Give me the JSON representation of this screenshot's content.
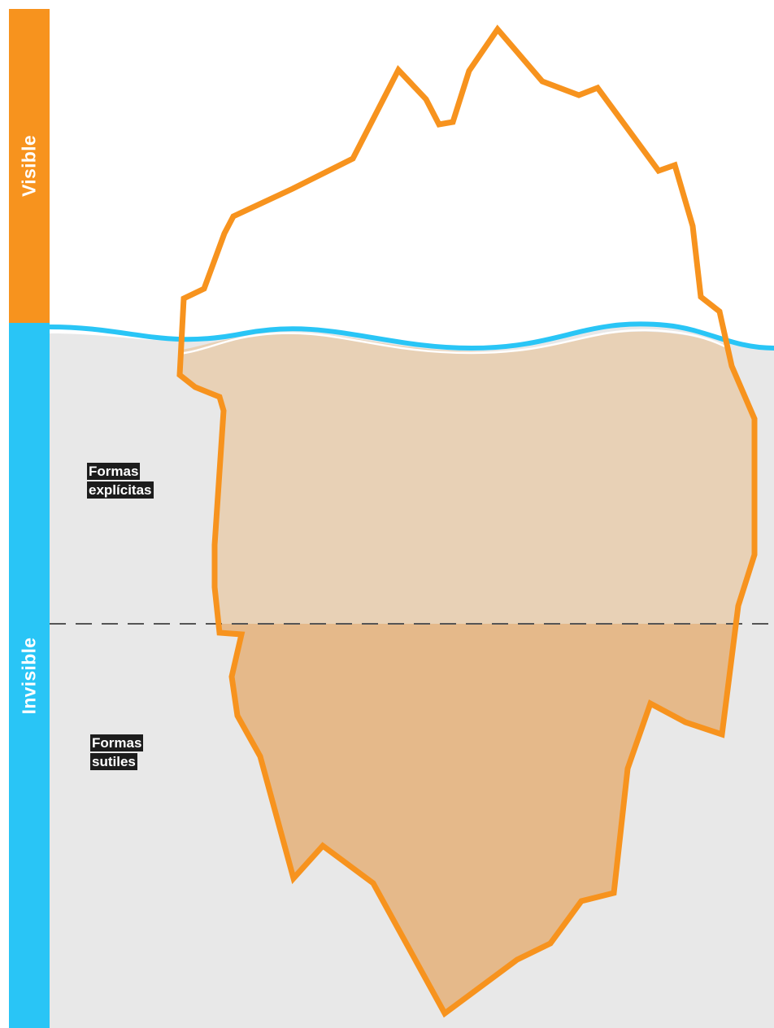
{
  "sidebar": {
    "visible_label": "Visible",
    "invisible_label": "Invisible"
  },
  "labels": {
    "explicit": [
      "Formas",
      "explícitas"
    ],
    "subtle": [
      "Formas",
      "sutiles"
    ]
  },
  "colors": {
    "visible_bar": "#f7931e",
    "invisible_bar": "#29c5f6",
    "water": "#e8e8e8",
    "waterline": "#29c5f6",
    "iceberg_outline": "#f7931e",
    "explicit_fill": "#e8d1b6",
    "subtle_fill": "#e5b98a",
    "divider": "#555555",
    "label_bg": "#1c1c1c"
  }
}
